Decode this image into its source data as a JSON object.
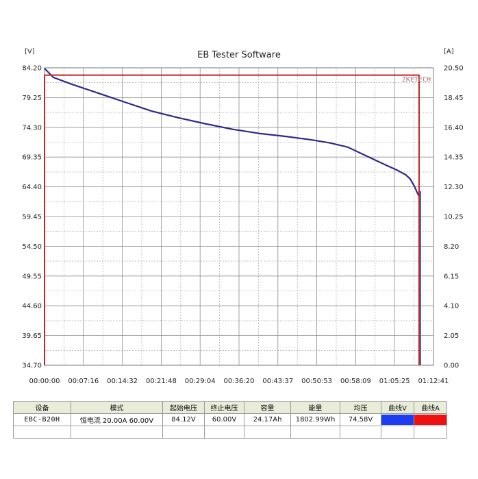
{
  "chart_data": {
    "type": "line",
    "title": "EB Tester Software",
    "y_left_unit": "[V]",
    "y_right_unit": "[A]",
    "y_left_ticks": [
      "84.20",
      "79.25",
      "74.30",
      "69.35",
      "64.40",
      "59.45",
      "54.50",
      "49.55",
      "44.60",
      "39.65",
      "34.70"
    ],
    "y_right_ticks": [
      "20.50",
      "18.45",
      "16.40",
      "14.35",
      "12.30",
      "10.25",
      "8.20",
      "6.15",
      "4.10",
      "2.05",
      "0.00"
    ],
    "x_ticks": [
      "00:00:00",
      "00:07:16",
      "00:14:32",
      "00:21:48",
      "00:29:04",
      "00:36:20",
      "00:43:37",
      "00:50:53",
      "00:58:09",
      "01:05:25",
      "01:12:41"
    ],
    "ylim_left": [
      34.7,
      84.2
    ],
    "ylim_right": [
      0,
      20.5
    ],
    "xlim_seconds": [
      0,
      4361
    ],
    "grid": true,
    "watermark": "ZKETECH",
    "series": [
      {
        "axis": "left",
        "color": "#2a2a8a",
        "x_seconds": [
          0,
          100,
          300,
          600,
          900,
          1200,
          1500,
          1800,
          2100,
          2400,
          2700,
          3000,
          3200,
          3400,
          3600,
          3800,
          3950,
          4050,
          4100,
          4150,
          4180,
          4200,
          4215
        ],
        "values": [
          84.1,
          82.6,
          81.5,
          80.0,
          78.5,
          77.0,
          75.9,
          74.9,
          74.0,
          73.3,
          72.8,
          72.2,
          71.7,
          71.0,
          69.6,
          68.2,
          67.2,
          66.4,
          65.7,
          64.4,
          63.4,
          62.8,
          59.4
        ]
      },
      {
        "axis": "right",
        "color": "#cc2222",
        "x_seconds": [
          0,
          0,
          4200,
          4200
        ],
        "values": [
          0.0,
          20.0,
          20.0,
          0.0
        ]
      },
      {
        "axis": "right",
        "color": "#3a66dd",
        "x_seconds": [
          4215,
          4215
        ],
        "values": [
          12.0,
          0.0
        ]
      }
    ]
  },
  "table": {
    "headers": [
      "设备",
      "模式",
      "起始电压",
      "终止电压",
      "容量",
      "能量",
      "均压",
      "曲线V",
      "曲线A"
    ],
    "row": [
      "EBC-B20H",
      "恒电流  20.00A  60.00V",
      "84.12V",
      "60.00V",
      "24.17Ah",
      "1802.99Wh",
      "74.58V"
    ],
    "colors": {
      "curve_v": "#1f3df0",
      "curve_a": "#ee1111"
    }
  }
}
